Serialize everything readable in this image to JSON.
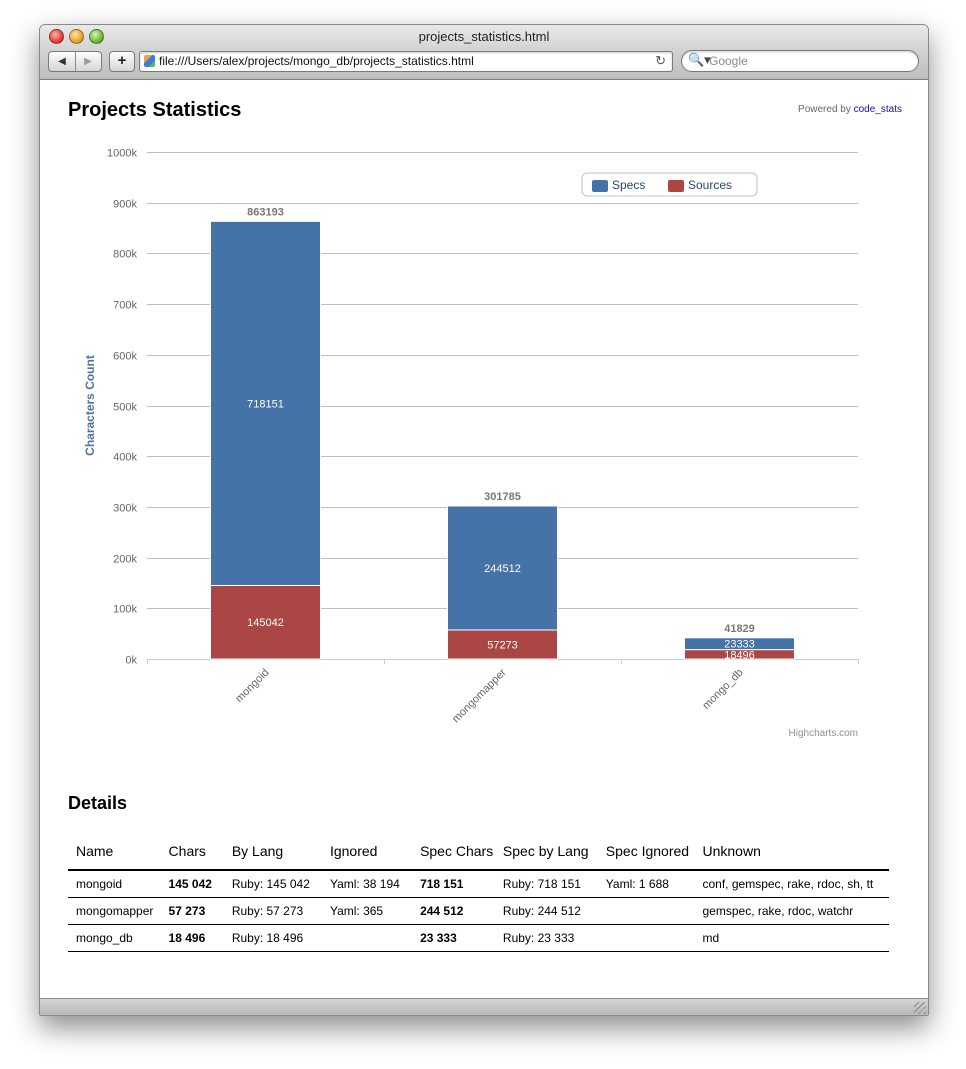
{
  "window": {
    "title": "projects_statistics.html"
  },
  "toolbar": {
    "back_icon": "◀",
    "forward_icon": "▶",
    "add_icon": "+",
    "url": "file:///Users/alex/projects/mongo_db/projects_statistics.html",
    "reload_icon": "↻",
    "search_icon": "🔍▾",
    "search_placeholder": "Google"
  },
  "page": {
    "title": "Projects Statistics",
    "powered_prefix": "Powered by",
    "powered_link": "code_stats",
    "credits": "Highcharts.com"
  },
  "colors": {
    "specs": "#4572A7",
    "sources": "#AA4643"
  },
  "chart_data": {
    "type": "bar",
    "stacked": true,
    "categories": [
      "mongoid",
      "mongomapper",
      "mongo_db"
    ],
    "series": [
      {
        "name": "Specs",
        "color": "#4572A7",
        "values": [
          718151,
          244512,
          23333
        ]
      },
      {
        "name": "Sources",
        "color": "#AA4643",
        "values": [
          145042,
          57273,
          18496
        ]
      }
    ],
    "totals": [
      "863193",
      "301785",
      "41829"
    ],
    "ylabel": "Characters Count",
    "ylim": [
      0,
      1000000
    ],
    "yticks": [
      "0k",
      "100k",
      "200k",
      "300k",
      "400k",
      "500k",
      "600k",
      "700k",
      "800k",
      "900k",
      "1000k"
    ],
    "legend_position": "top-right",
    "grid": true
  },
  "details": {
    "title": "Details",
    "headers": [
      "Name",
      "Chars",
      "By Lang",
      "Ignored",
      "Spec Chars",
      "Spec by Lang",
      "Spec Ignored",
      "Unknown"
    ],
    "rows": [
      [
        "mongoid",
        "145 042",
        "Ruby: 145 042",
        "Yaml: 38 194",
        "718 151",
        "Ruby: 718 151",
        "Yaml: 1 688",
        "conf, gemspec, rake, rdoc, sh, tt"
      ],
      [
        "mongomapper",
        "57 273",
        "Ruby: 57 273",
        "Yaml: 365",
        "244 512",
        "Ruby: 244 512",
        "",
        "gemspec, rake, rdoc, watchr"
      ],
      [
        "mongo_db",
        "18 496",
        "Ruby: 18 496",
        "",
        "23 333",
        "Ruby: 23 333",
        "",
        "md"
      ]
    ]
  }
}
